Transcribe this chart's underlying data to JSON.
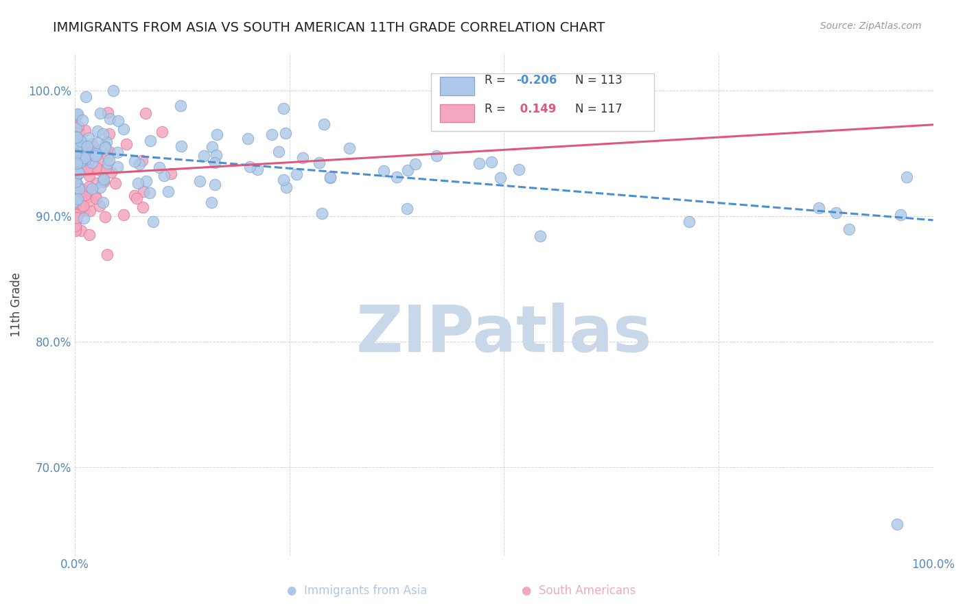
{
  "title": "IMMIGRANTS FROM ASIA VS SOUTH AMERICAN 11TH GRADE CORRELATION CHART",
  "source": "Source: ZipAtlas.com",
  "ylabel": "11th Grade",
  "xlim": [
    0.0,
    1.0
  ],
  "ylim": [
    0.63,
    1.03
  ],
  "yticks": [
    0.7,
    0.8,
    0.9,
    1.0
  ],
  "yticklabels": [
    "70.0%",
    "80.0%",
    "90.0%",
    "100.0%"
  ],
  "asia_color": "#adc8e8",
  "asia_edge_color": "#85aad4",
  "south_color": "#f4a8c0",
  "south_edge_color": "#e080a0",
  "asia_line_color": "#4a90d0",
  "south_line_color": "#e05878",
  "grid_line_color": "#cccccc",
  "watermark_color": "#c8d8e8",
  "R_asia": -0.206,
  "N_asia": 113,
  "R_south": 0.149,
  "N_south": 117,
  "legend_label_asia": "Immigrants from Asia",
  "legend_label_south": "South Americans",
  "background_color": "#ffffff",
  "title_fontsize": 14,
  "axis_tick_color": "#5588bb",
  "marker_size": 140,
  "seed": 9999
}
